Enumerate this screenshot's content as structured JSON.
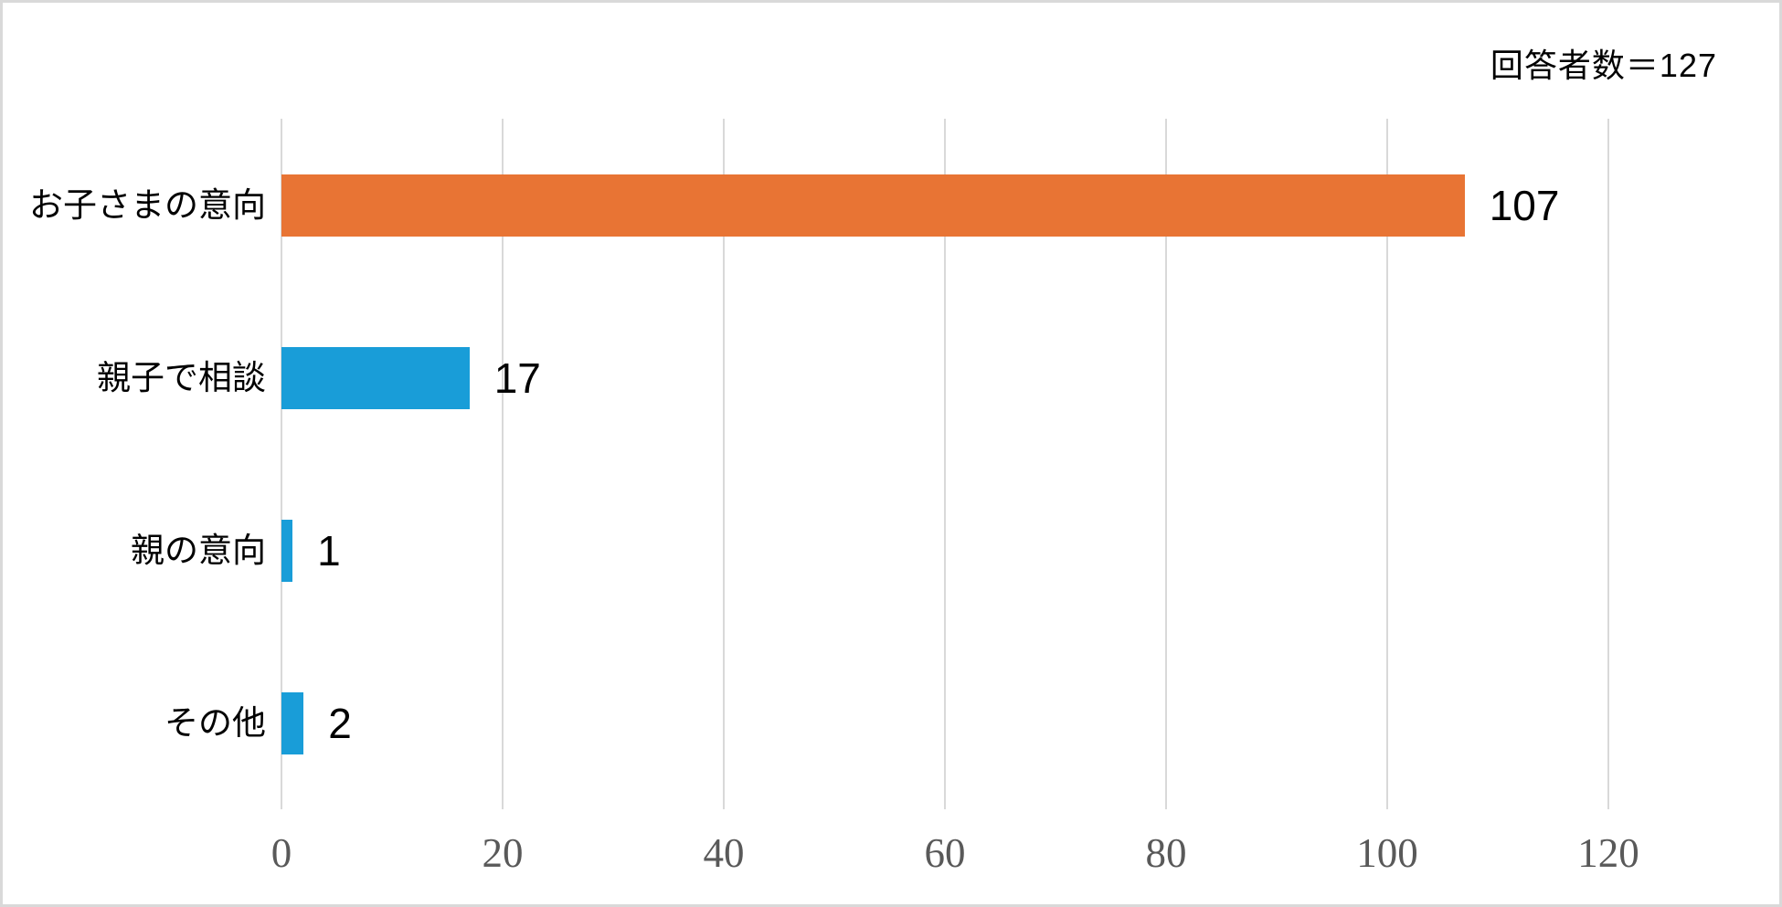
{
  "annotation": {
    "respondents": "回答者数＝127"
  },
  "chart_data": {
    "type": "bar",
    "orientation": "horizontal",
    "title": "",
    "categories": [
      "お子さまの意向",
      "親子で相談",
      "親の意向",
      "その他"
    ],
    "values": [
      107,
      17,
      1,
      2
    ],
    "data_labels": [
      "107",
      "17",
      "1",
      "2"
    ],
    "bar_colors": [
      "#e87434",
      "#199dd8",
      "#199dd8",
      "#199dd8"
    ],
    "x_ticks": [
      "0",
      "20",
      "40",
      "60",
      "80",
      "100",
      "120"
    ],
    "x_tick_values": [
      0,
      20,
      40,
      60,
      80,
      100,
      120
    ],
    "xlim": [
      0,
      120
    ],
    "xlabel": "",
    "ylabel": "",
    "grid": "vertical-only",
    "legend": "none",
    "annotation": "回答者数＝127",
    "colors": {
      "highlight_bar": "#e87434",
      "default_bar": "#199dd8",
      "gridline": "#d9d9d9",
      "tick_label": "#595959",
      "text": "#000000",
      "background": "#ffffff",
      "border": "#d9d9d9"
    }
  }
}
